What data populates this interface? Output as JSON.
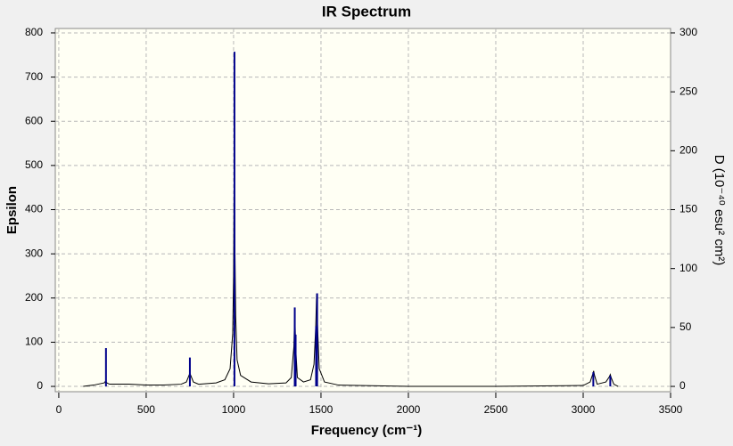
{
  "chart_data": {
    "type": "line",
    "title": "IR Spectrum",
    "x_label": "Frequency (cm⁻¹)",
    "y_label": "Epsilon",
    "y2_label": "D (10⁻⁴⁰ esu² cm²)",
    "xlim": [
      -20,
      3500
    ],
    "xticks": [
      0,
      500,
      1000,
      1500,
      2000,
      2500,
      3000,
      3500
    ],
    "ylim": [
      -12,
      810
    ],
    "yticks": [
      0,
      100,
      200,
      300,
      400,
      500,
      600,
      700,
      800
    ],
    "y2lim": [
      -4.5,
      303.75
    ],
    "y2ticks": [
      0,
      50,
      100,
      150,
      200,
      250,
      300
    ],
    "grid": true,
    "series": [
      {
        "type": "line",
        "color": "#000000",
        "x": [
          140,
          200,
          260,
          268,
          275,
          290,
          400,
          500,
          600,
          700,
          730,
          745,
          750,
          755,
          770,
          800,
          900,
          950,
          980,
          995,
          1000,
          1004,
          1008,
          1012,
          1020,
          1040,
          1100,
          1200,
          1300,
          1330,
          1345,
          1350,
          1355,
          1365,
          1400,
          1440,
          1460,
          1470,
          1475,
          1480,
          1490,
          1520,
          1600,
          2000,
          2500,
          3000,
          3040,
          3055,
          3060,
          3065,
          3080,
          3130,
          3150,
          3155,
          3160,
          3175,
          3200
        ],
        "values": [
          0,
          3,
          8,
          12,
          8,
          5,
          5,
          3,
          3,
          5,
          10,
          25,
          30,
          25,
          10,
          5,
          8,
          15,
          40,
          120,
          250,
          530,
          300,
          160,
          60,
          25,
          10,
          6,
          8,
          20,
          90,
          175,
          90,
          20,
          10,
          15,
          50,
          135,
          210,
          140,
          40,
          10,
          3,
          0,
          0,
          2,
          10,
          28,
          35,
          25,
          5,
          10,
          22,
          27,
          20,
          5,
          0
        ]
      },
      {
        "type": "stem",
        "color": "#00008b",
        "axis": "y2",
        "x": [
          270,
          750,
          1005,
          1350,
          1355,
          1472,
          1478,
          3058,
          3155
        ],
        "values": [
          32.5,
          24.5,
          284,
          67,
          44,
          51,
          79,
          12,
          9
        ]
      }
    ]
  }
}
